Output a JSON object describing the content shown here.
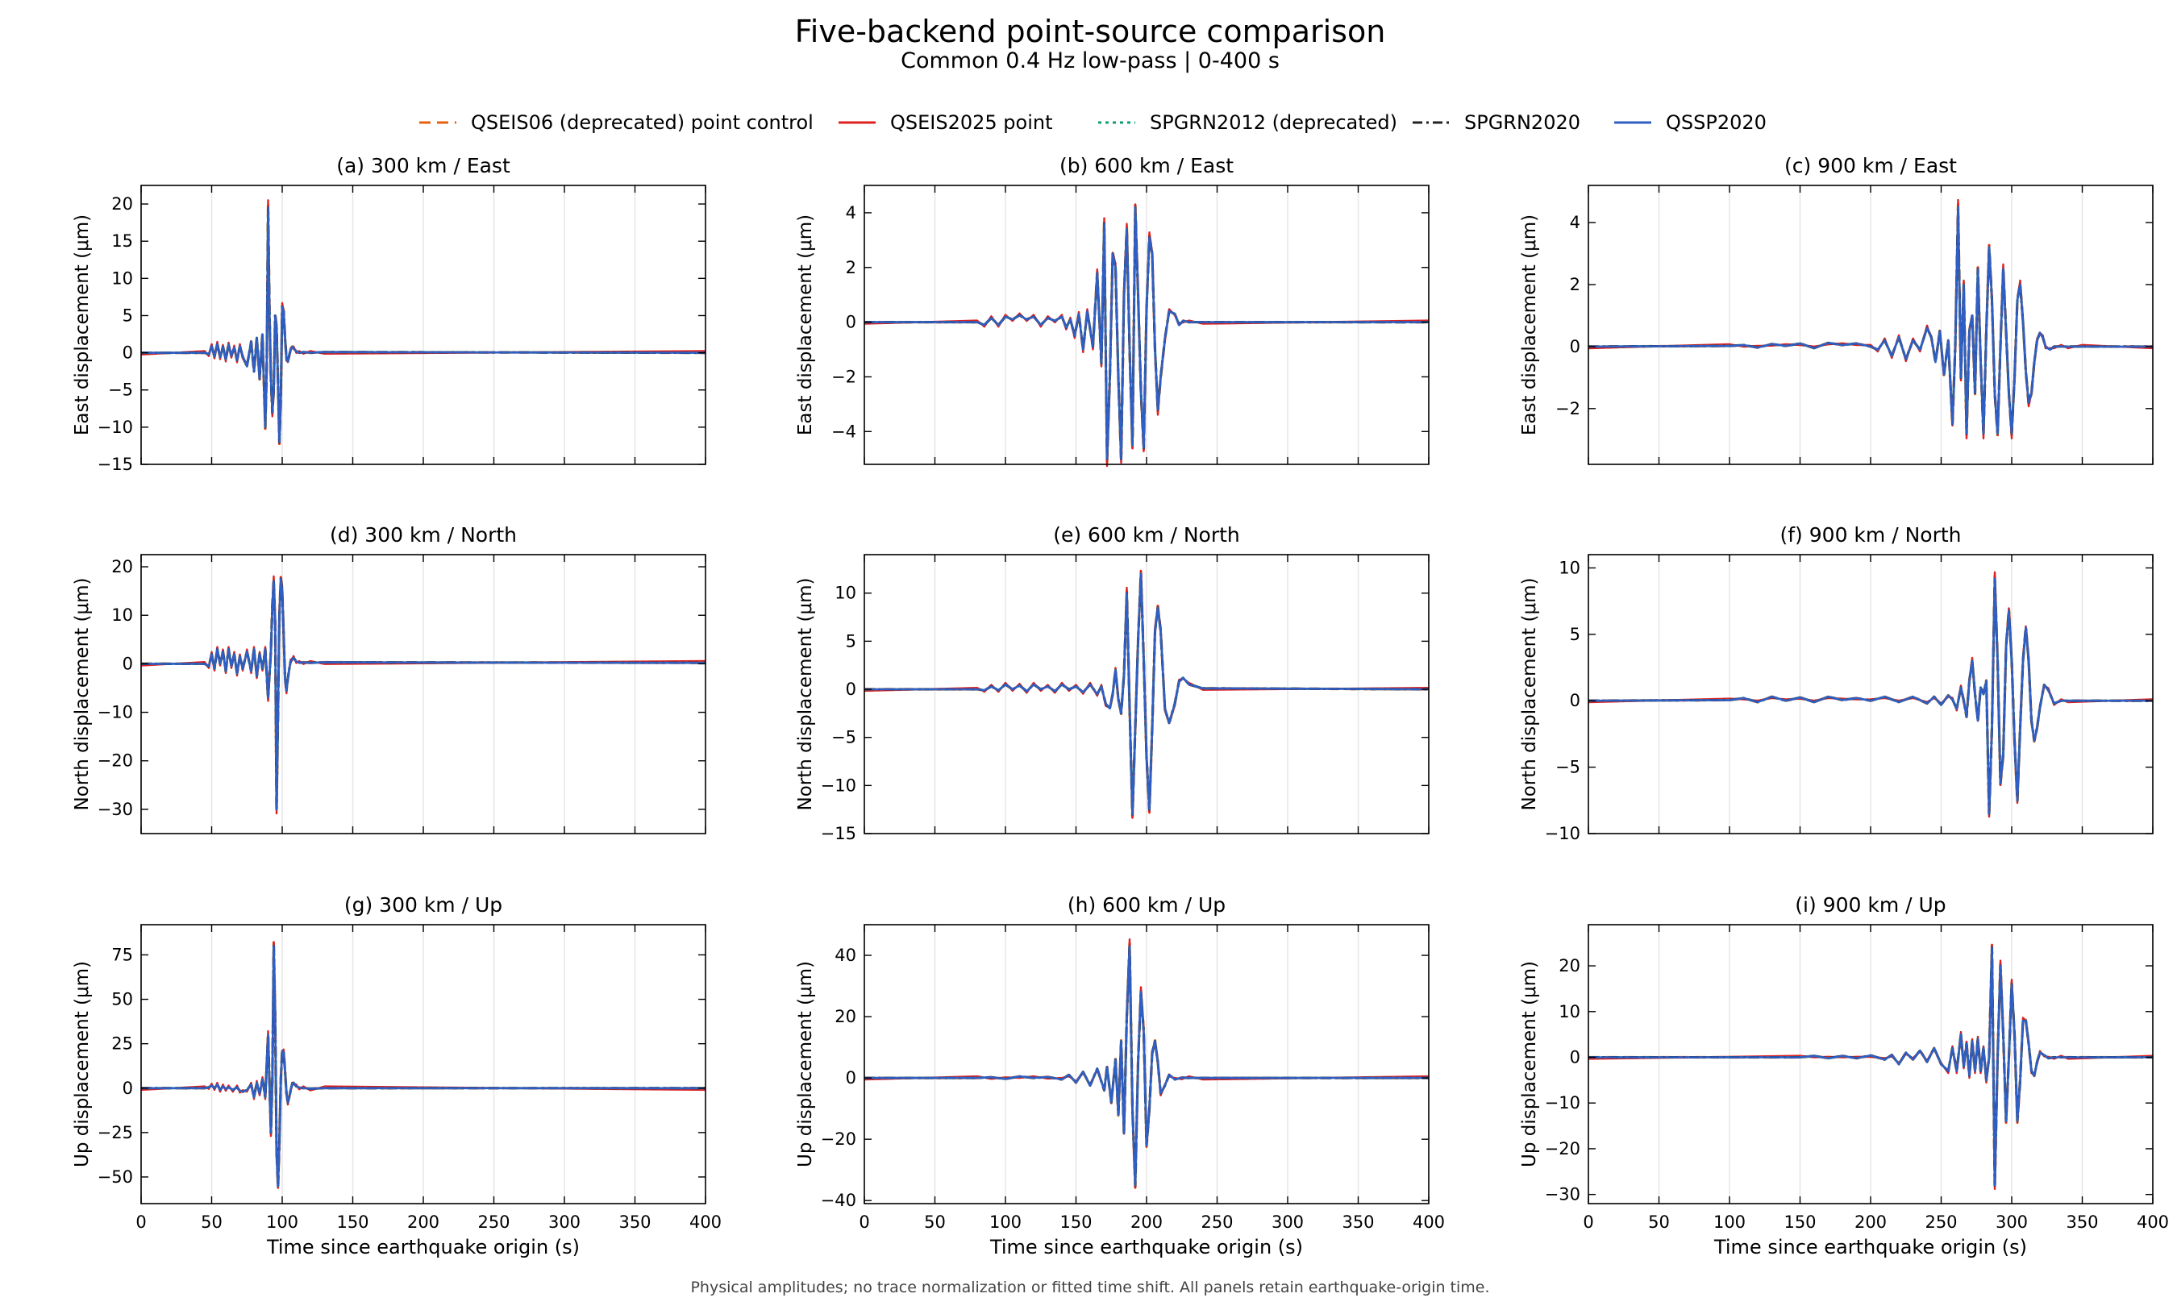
{
  "figure": {
    "title": "Five-backend point-source comparison",
    "subtitle": "Common 0.4 Hz low-pass | 0-400 s",
    "footnote": "Physical amplitudes; no trace normalization or fitted time shift. All panels retain earthquake-origin time.",
    "legend": [
      {
        "name": "QSEIS06 (deprecated) point control",
        "color": "#e8600c",
        "dash": "dashed"
      },
      {
        "name": "QSEIS2025 point",
        "color": "#e02020",
        "dash": "solid"
      },
      {
        "name": "SPGRN2012 (deprecated)",
        "color": "#0c9e73",
        "dash": "dotted"
      },
      {
        "name": "SPGRN2020",
        "color": "#222222",
        "dash": "dashdot"
      },
      {
        "name": "QSSP2020",
        "color": "#2f5ec4",
        "dash": "solid"
      }
    ]
  },
  "chart_data": [
    {
      "type": "line",
      "title": "(a) 300 km / East",
      "ylabel": "East displacement (μm)",
      "xlabel": "",
      "xlim": [
        0,
        400
      ],
      "ylim": [
        -15,
        22.5
      ],
      "yticks": [
        -15,
        -10,
        -5,
        0,
        5,
        10,
        15,
        20
      ],
      "xticks": [
        0,
        50,
        100,
        150,
        200,
        250,
        300,
        350,
        400
      ],
      "show_xticklabels": false,
      "x": [
        0,
        45,
        48,
        50,
        52,
        54,
        56,
        58,
        60,
        62,
        64,
        66,
        68,
        70,
        72,
        75,
        78,
        80,
        82,
        84,
        86,
        88,
        89,
        90,
        91,
        92,
        93,
        94,
        95,
        96,
        97,
        98,
        99,
        100,
        101,
        102,
        103,
        104,
        105,
        106,
        107,
        108,
        110,
        112,
        115,
        120,
        130,
        400
      ],
      "y": [
        0,
        0,
        -0.2,
        0.9,
        -0.5,
        1.2,
        -0.6,
        0.8,
        -0.9,
        1.1,
        -0.4,
        0.7,
        -1.0,
        0.9,
        -0.5,
        -1.8,
        1.5,
        -2.5,
        2.0,
        -3.5,
        2.5,
        -10.0,
        -2.0,
        19.5,
        5.0,
        -3.5,
        -8.0,
        -5.0,
        5.0,
        3.5,
        -4.0,
        -12.0,
        -6.0,
        6.2,
        5.5,
        2.0,
        -0.8,
        -1.2,
        -0.3,
        0.4,
        0.8,
        0.6,
        0.2,
        0.0,
        0.1,
        0.0,
        0.1,
        0.0
      ]
    },
    {
      "type": "line",
      "title": "(b) 600 km / East",
      "ylabel": "East displacement (μm)",
      "xlabel": "",
      "xlim": [
        0,
        400
      ],
      "ylim": [
        -5.2,
        5.0
      ],
      "yticks": [
        -4,
        -2,
        0,
        2,
        4
      ],
      "xticks": [
        0,
        50,
        100,
        150,
        200,
        250,
        300,
        350,
        400
      ],
      "show_xticklabels": false,
      "x": [
        0,
        80,
        85,
        90,
        95,
        100,
        105,
        110,
        115,
        120,
        125,
        130,
        135,
        140,
        143,
        146,
        149,
        152,
        155,
        158,
        162,
        165,
        168,
        170,
        172,
        174,
        176,
        178,
        180,
        182,
        184,
        186,
        188,
        190,
        192,
        194,
        196,
        198,
        200,
        202,
        204,
        206,
        208,
        210,
        213,
        216,
        220,
        223,
        226,
        230,
        240,
        400
      ],
      "y": [
        0,
        0,
        -0.1,
        0.15,
        -0.1,
        0.2,
        0.1,
        0.25,
        0.1,
        0.2,
        -0.1,
        0.15,
        0.05,
        0.2,
        -0.2,
        0.1,
        -0.5,
        0.3,
        -1.0,
        0.4,
        -0.9,
        1.8,
        -1.5,
        3.6,
        -5.0,
        -2.0,
        2.5,
        2.0,
        -2.0,
        -5.0,
        1.0,
        3.4,
        -1.0,
        -4.5,
        4.2,
        1.0,
        -2.5,
        -4.6,
        0.5,
        3.1,
        2.5,
        -1.0,
        -3.2,
        -2.0,
        -0.6,
        0.4,
        0.3,
        -0.1,
        0.05,
        0.0,
        0.0,
        0.0
      ]
    },
    {
      "type": "line",
      "title": "(c) 900 km / East",
      "ylabel": "East displacement (μm)",
      "xlabel": "",
      "xlim": [
        0,
        400
      ],
      "ylim": [
        -3.8,
        5.2
      ],
      "yticks": [
        -2,
        0,
        2,
        4
      ],
      "xticks": [
        0,
        50,
        100,
        150,
        200,
        250,
        300,
        350,
        400
      ],
      "show_xticklabels": false,
      "x": [
        0,
        100,
        110,
        120,
        130,
        140,
        150,
        160,
        170,
        180,
        190,
        200,
        205,
        210,
        215,
        220,
        225,
        230,
        235,
        240,
        243,
        246,
        249,
        252,
        255,
        258,
        260,
        262,
        264,
        266,
        268,
        270,
        272,
        274,
        276,
        278,
        280,
        282,
        284,
        286,
        288,
        290,
        292,
        294,
        296,
        298,
        300,
        302,
        304,
        306,
        308,
        310,
        312,
        314,
        316,
        318,
        320,
        322,
        324,
        327,
        330,
        335,
        340,
        350,
        400
      ],
      "y": [
        0,
        0.02,
        0.05,
        -0.03,
        0.08,
        0.02,
        0.1,
        -0.05,
        0.12,
        0.05,
        0.1,
        0.0,
        -0.1,
        0.2,
        -0.3,
        0.3,
        -0.4,
        0.2,
        -0.1,
        0.6,
        0.3,
        -0.5,
        0.5,
        -0.9,
        0.2,
        -2.5,
        0.0,
        4.5,
        -1.0,
        2.0,
        -2.8,
        0.5,
        1.0,
        -1.5,
        2.5,
        -0.5,
        -2.8,
        0.5,
        3.2,
        1.5,
        -1.5,
        -2.8,
        0.0,
        2.5,
        0.5,
        -1.5,
        -2.8,
        -1.0,
        1.5,
        2.0,
        0.8,
        -0.8,
        -1.8,
        -1.5,
        -0.5,
        0.2,
        0.45,
        0.3,
        0.0,
        -0.1,
        0.0,
        0.0,
        0.0,
        0.0,
        0.0
      ]
    },
    {
      "type": "line",
      "title": "(d) 300 km / North",
      "ylabel": "North displacement (μm)",
      "xlabel": "",
      "xlim": [
        0,
        400
      ],
      "ylim": [
        -35,
        22.5
      ],
      "yticks": [
        -30,
        -20,
        -10,
        0,
        10,
        20
      ],
      "xticks": [
        0,
        50,
        100,
        150,
        200,
        250,
        300,
        350,
        400
      ],
      "show_xticklabels": false,
      "x": [
        0,
        45,
        48,
        50,
        52,
        54,
        56,
        58,
        60,
        62,
        64,
        66,
        68,
        70,
        72,
        75,
        78,
        80,
        82,
        84,
        86,
        88,
        90,
        92,
        93,
        94,
        95,
        96,
        97,
        98,
        99,
        100,
        101,
        102,
        103,
        104,
        105,
        106,
        107,
        108,
        110,
        112,
        115,
        120,
        130,
        400
      ],
      "y": [
        0,
        0,
        -0.5,
        2.0,
        -1.0,
        3.0,
        0.0,
        2.5,
        -1.5,
        3.0,
        -0.5,
        2.0,
        -2.0,
        1.5,
        -1.0,
        2.5,
        -1.5,
        3.0,
        -2.5,
        2.0,
        -1.0,
        3.0,
        -7.0,
        2.5,
        12.0,
        17.0,
        8.0,
        -30.0,
        -10.0,
        10.0,
        17.5,
        15.0,
        6.0,
        -3.0,
        -5.5,
        -3.0,
        -1.0,
        0.5,
        1.0,
        1.2,
        0.5,
        0.2,
        0.3,
        0.2,
        0.3,
        0.2
      ]
    },
    {
      "type": "line",
      "title": "(e) 600 km / North",
      "ylabel": "North displacement (μm)",
      "xlabel": "",
      "xlim": [
        0,
        400
      ],
      "ylim": [
        -15,
        14
      ],
      "yticks": [
        -15,
        -10,
        -5,
        0,
        5,
        10
      ],
      "xticks": [
        0,
        50,
        100,
        150,
        200,
        250,
        300,
        350,
        400
      ],
      "show_xticklabels": false,
      "x": [
        0,
        80,
        85,
        90,
        95,
        100,
        105,
        110,
        115,
        120,
        125,
        130,
        135,
        140,
        145,
        150,
        155,
        160,
        165,
        168,
        171,
        174,
        176,
        178,
        180,
        182,
        184,
        186,
        188,
        190,
        192,
        194,
        196,
        198,
        200,
        202,
        204,
        206,
        208,
        210,
        213,
        216,
        220,
        223,
        226,
        230,
        240,
        400
      ],
      "y": [
        0,
        0,
        -0.1,
        0.3,
        -0.1,
        0.5,
        0.0,
        0.4,
        -0.2,
        0.5,
        0.0,
        0.3,
        -0.2,
        0.5,
        0.0,
        0.3,
        -0.3,
        0.5,
        -0.5,
        0.3,
        -1.5,
        -2.0,
        -0.5,
        2.0,
        -1.0,
        -2.5,
        1.5,
        10.0,
        -2.0,
        -13.0,
        -4.0,
        5.0,
        12.0,
        3.0,
        -7.0,
        -12.5,
        -4.0,
        6.0,
        8.5,
        6.0,
        -2.0,
        -3.5,
        -1.5,
        0.8,
        1.2,
        0.5,
        0.1,
        0.0
      ]
    },
    {
      "type": "line",
      "title": "(f) 900 km / North",
      "ylabel": "North displacement (μm)",
      "xlabel": "",
      "xlim": [
        0,
        400
      ],
      "ylim": [
        -10,
        11
      ],
      "yticks": [
        -10,
        -5,
        0,
        5,
        10
      ],
      "xticks": [
        0,
        50,
        100,
        150,
        200,
        250,
        300,
        350,
        400
      ],
      "show_xticklabels": false,
      "x": [
        0,
        100,
        110,
        120,
        130,
        140,
        150,
        160,
        170,
        180,
        190,
        200,
        210,
        220,
        230,
        240,
        245,
        250,
        255,
        258,
        261,
        264,
        266,
        268,
        270,
        272,
        274,
        276,
        278,
        280,
        282,
        284,
        286,
        288,
        290,
        292,
        294,
        296,
        298,
        300,
        302,
        304,
        306,
        308,
        310,
        312,
        314,
        316,
        318,
        320,
        323,
        326,
        330,
        335,
        340,
        400
      ],
      "y": [
        0,
        0.05,
        0.2,
        -0.1,
        0.3,
        0.0,
        0.25,
        -0.1,
        0.3,
        0.05,
        0.2,
        0.0,
        0.3,
        -0.1,
        0.3,
        -0.2,
        0.3,
        -0.3,
        0.4,
        0.1,
        -0.6,
        1.0,
        0.0,
        -1.2,
        1.5,
        3.0,
        0.5,
        -1.5,
        1.0,
        0.5,
        1.5,
        -8.5,
        -2.0,
        9.2,
        3.0,
        -6.2,
        -4.0,
        4.0,
        6.8,
        3.0,
        -3.0,
        -7.5,
        -2.0,
        3.0,
        5.5,
        3.0,
        -1.5,
        -3.0,
        -2.0,
        -0.5,
        1.2,
        0.8,
        -0.2,
        0.0,
        0.0,
        0.0
      ]
    },
    {
      "type": "line",
      "title": "(g) 300 km / Up",
      "ylabel": "Up displacement (μm)",
      "xlabel": "Time since earthquake origin (s)",
      "xlim": [
        0,
        400
      ],
      "ylim": [
        -65,
        92
      ],
      "yticks": [
        -50,
        -25,
        0,
        25,
        50,
        75
      ],
      "xticks": [
        0,
        50,
        100,
        150,
        200,
        250,
        300,
        350,
        400
      ],
      "show_xticklabels": true,
      "x": [
        0,
        45,
        48,
        50,
        52,
        54,
        56,
        58,
        60,
        62,
        65,
        68,
        70,
        72,
        75,
        78,
        80,
        82,
        84,
        86,
        88,
        90,
        92,
        93,
        94,
        95,
        96,
        97,
        98,
        99,
        100,
        101,
        102,
        103,
        104,
        105,
        106,
        107,
        108,
        110,
        112,
        115,
        120,
        130,
        400
      ],
      "y": [
        0,
        0,
        0.5,
        1.5,
        0.0,
        2.0,
        -1.0,
        1.0,
        -0.5,
        0.5,
        -1.0,
        0.5,
        -1.5,
        -2.0,
        -1.0,
        2.0,
        -5.0,
        3.0,
        -3.0,
        5.0,
        -5.0,
        30.0,
        -25.0,
        5.0,
        80.0,
        40.0,
        -35.0,
        -55.0,
        -30.0,
        5.0,
        21.0,
        20.0,
        10.0,
        -3.0,
        -8.0,
        -5.0,
        -1.0,
        2.0,
        3.0,
        1.0,
        0.3,
        0.0,
        -0.3,
        0.0,
        0.0
      ]
    },
    {
      "type": "line",
      "title": "(h) 600 km / Up",
      "ylabel": "Up displacement (μm)",
      "xlabel": "Time since earthquake origin (s)",
      "xlim": [
        0,
        400
      ],
      "ylim": [
        -41,
        50
      ],
      "yticks": [
        -40,
        -20,
        0,
        20,
        40
      ],
      "xticks": [
        0,
        50,
        100,
        150,
        200,
        250,
        300,
        350,
        400
      ],
      "show_xticklabels": true,
      "x": [
        0,
        80,
        90,
        100,
        110,
        120,
        130,
        140,
        145,
        150,
        155,
        160,
        165,
        170,
        172,
        175,
        178,
        180,
        182,
        184,
        186,
        188,
        190,
        192,
        194,
        196,
        198,
        200,
        202,
        204,
        206,
        208,
        210,
        213,
        216,
        220,
        225,
        230,
        240,
        400
      ],
      "y": [
        0,
        0,
        0.2,
        -0.3,
        0.5,
        0.0,
        0.3,
        -0.5,
        1.0,
        -1.5,
        2.0,
        -2.5,
        3.0,
        -4.0,
        3.5,
        -8.0,
        6.0,
        -12.0,
        12.0,
        -18.0,
        20.0,
        43.0,
        -10.0,
        -35.0,
        5.0,
        28.0,
        15.0,
        -22.0,
        -10.0,
        8.0,
        12.0,
        5.0,
        -5.0,
        -2.5,
        1.0,
        -0.5,
        0.1,
        0.0,
        0.0,
        0.0
      ]
    },
    {
      "type": "line",
      "title": "(i) 900 km / Up",
      "ylabel": "Up displacement (μm)",
      "xlabel": "Time since earthquake origin (s)",
      "xlim": [
        0,
        400
      ],
      "ylim": [
        -32,
        29
      ],
      "yticks": [
        -30,
        -20,
        -10,
        0,
        10,
        20
      ],
      "xticks": [
        0,
        50,
        100,
        150,
        200,
        250,
        300,
        350,
        400
      ],
      "show_xticklabels": true,
      "x": [
        0,
        150,
        160,
        170,
        180,
        190,
        200,
        210,
        215,
        220,
        225,
        230,
        235,
        240,
        245,
        250,
        255,
        258,
        261,
        264,
        266,
        268,
        270,
        272,
        274,
        276,
        278,
        280,
        282,
        284,
        286,
        288,
        290,
        292,
        294,
        296,
        298,
        300,
        302,
        304,
        306,
        308,
        310,
        312,
        314,
        316,
        318,
        320,
        323,
        326,
        330,
        335,
        340,
        400
      ],
      "y": [
        0,
        0,
        0.3,
        -0.2,
        0.3,
        -0.2,
        0.4,
        -0.5,
        0.5,
        -1.5,
        1.0,
        -0.5,
        1.5,
        -1.0,
        2.0,
        -1.5,
        -3.0,
        2.0,
        -3.0,
        5.0,
        -2.0,
        3.0,
        -4.0,
        3.5,
        -3.0,
        4.0,
        -3.0,
        2.0,
        -5.0,
        0.0,
        24.0,
        -28.0,
        0.0,
        20.0,
        5.0,
        -14.0,
        0.0,
        16.0,
        5.0,
        -14.0,
        -5.0,
        8.0,
        8.0,
        3.0,
        -3.0,
        -4.0,
        -1.0,
        1.0,
        0.5,
        -0.2,
        0.0,
        0.0,
        0.0,
        0.0
      ]
    }
  ]
}
